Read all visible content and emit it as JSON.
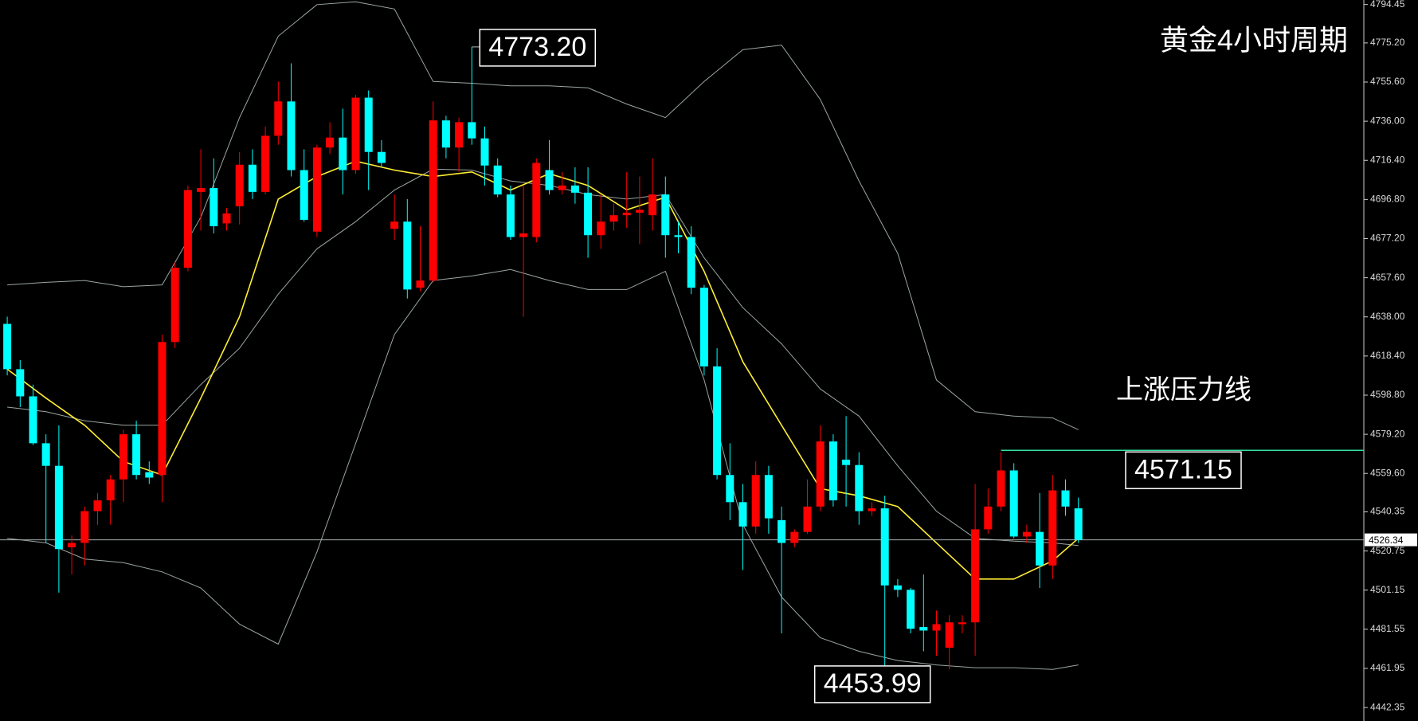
{
  "chart_data": {
    "type": "candlestick",
    "title": "黄金4小时周期",
    "up_color": "#ff0000",
    "down_color": "#00ffff",
    "ylim": [
      4435.6,
      4796.7
    ],
    "yticks": [
      4794.45,
      {
        "value": 4775.2,
        "label": "4775.20"
      },
      {
        "value": 4755.6,
        "label": "4755.60"
      },
      {
        "value": 4736,
        "label": "4736.00"
      },
      {
        "value": 4716.4,
        "label": "4716.40"
      },
      {
        "value": 4696.8,
        "label": "4696.80"
      },
      {
        "value": 4677.2,
        "label": "4677.20"
      },
      {
        "value": 4657.6,
        "label": "4657.60"
      },
      {
        "value": 4638,
        "label": "4638.00"
      },
      {
        "value": 4618.4,
        "label": "4618.40"
      },
      {
        "value": 4598.8,
        "label": "4598.80"
      },
      {
        "value": 4579.2,
        "label": "4579.20"
      },
      {
        "value": 4559.6,
        "label": "4559.60"
      },
      4540.35,
      4520.75,
      4501.15,
      4481.55,
      4461.95,
      4442.35
    ],
    "open": [
      4634.5,
      4611.8,
      4598.2,
      4574.7,
      4563.4,
      4522.6,
      4524.8,
      4540.7,
      4546.1,
      4556.6,
      4579.2,
      4560.2,
      4558.8,
      4625.4,
      4662.6,
      4700.6,
      4702.5,
      4684.8,
      4693.4,
      4714.2,
      4700.6,
      4728.7,
      4745.9,
      4711.5,
      4680.7,
      4722.8,
      4727.8,
      4711.5,
      4747.8,
      4720.6,
      4682.1,
      4685.7,
      4652.6,
      4656.2,
      4736.4,
      4722.8,
      4735.5,
      4727.4,
      4713.8,
      4699.3,
      4678.0,
      4678.0,
      4711.5,
      4701.5,
      4703.8,
      4700.2,
      4678.9,
      4685.7,
      4688.9,
      4690.2,
      4688.9,
      4699.3,
      4678.9,
      4678.0,
      4652.6,
      4613.2,
      4558.8,
      4545.2,
      4533.0,
      4558.8,
      4536.2,
      4524.8,
      4530.3,
      4543.0,
      4575.6,
      4566.5,
      4563.8,
      4540.7,
      4542.1,
      4503.5,
      4501.3,
      4482.7,
      4480.9,
      4472.3,
      4484.1,
      4485.0,
      4531.6,
      4543.0,
      4561.1,
      4528.0,
      4530.3,
      4513.5,
      4551.1,
      4542.1
    ],
    "high": [
      4638.1,
      4616.4,
      4604.1,
      4579.2,
      4583.7,
      4528.5,
      4543.0,
      4549.8,
      4558.8,
      4581.5,
      4586.0,
      4565.6,
      4629.1,
      4665.3,
      4703.8,
      4721.9,
      4717.4,
      4692.5,
      4720.6,
      4721.9,
      4733.3,
      4755.9,
      4765.0,
      4721.9,
      4724.2,
      4735.5,
      4742.3,
      4749.1,
      4751.4,
      4726.5,
      4699.3,
      4697.0,
      4683.4,
      4745.9,
      4738.7,
      4737.8,
      4773.2,
      4733.3,
      4717.4,
      4703.8,
      4703.8,
      4717.4,
      4726.5,
      4710.6,
      4712.9,
      4712.9,
      4699.3,
      4694.7,
      4710.6,
      4708.3,
      4717.4,
      4708.3,
      4685.7,
      4683.4,
      4654.0,
      4622.3,
      4574.7,
      4554.3,
      4565.6,
      4563.4,
      4543.0,
      4531.6,
      4556.6,
      4583.7,
      4579.2,
      4588.3,
      4570.2,
      4545.2,
      4548.4,
      4506.7,
      4502.2,
      4509.0,
      4490.9,
      4488.6,
      4488.6,
      4554.3,
      4552.0,
      4570.2,
      4564.7,
      4533.9,
      4549.8,
      4558.8,
      4556.6,
      4547.5
    ],
    "low": [
      4608.7,
      4592.8,
      4573.8,
      4524.8,
      4499.9,
      4509.0,
      4513.5,
      4533.9,
      4533.9,
      4545.2,
      4556.6,
      4554.3,
      4545.2,
      4622.3,
      4660.8,
      4681.2,
      4679.8,
      4681.2,
      4684.3,
      4697.0,
      4699.3,
      4724.2,
      4708.3,
      4685.7,
      4678.0,
      4719.7,
      4699.3,
      4709.7,
      4701.5,
      4712.9,
      4676.6,
      4647.2,
      4650.8,
      4655.3,
      4717.4,
      4710.6,
      4724.2,
      4703.8,
      4697.9,
      4676.6,
      4638.1,
      4675.3,
      4699.3,
      4699.3,
      4694.7,
      4667.6,
      4672.1,
      4681.2,
      4682.5,
      4674.4,
      4681.2,
      4667.6,
      4669.8,
      4649.4,
      4608.7,
      4556.6,
      4536.2,
      4511.2,
      4529.4,
      4529.4,
      4479.5,
      4522.6,
      4529.4,
      4540.7,
      4543.0,
      4543.0,
      4533.9,
      4538.4,
      4453.99,
      4497.7,
      4479.5,
      4470.5,
      4468.2,
      4461.4,
      4479.5,
      4468.2,
      4529.4,
      4540.7,
      4527.1,
      4524.8,
      4502.2,
      4506.7,
      4538.4,
      4524.8
    ],
    "close": [
      4611.8,
      4598.2,
      4574.7,
      4563.4,
      4521.7,
      4524.8,
      4540.7,
      4546.1,
      4556.6,
      4579.2,
      4558.8,
      4557.5,
      4625.4,
      4662.6,
      4701.5,
      4702.5,
      4683.4,
      4689.8,
      4714.2,
      4700.6,
      4728.7,
      4745.9,
      4711.5,
      4686.6,
      4722.8,
      4727.8,
      4711.5,
      4747.8,
      4720.6,
      4715.1,
      4685.7,
      4651.7,
      4656.2,
      4736.4,
      4722.8,
      4735.5,
      4727.4,
      4713.8,
      4699.3,
      4678.0,
      4679.8,
      4715.1,
      4701.5,
      4703.8,
      4700.2,
      4678.9,
      4685.7,
      4688.9,
      4690.2,
      4691.6,
      4699.3,
      4678.9,
      4678.0,
      4652.6,
      4613.2,
      4558.8,
      4545.2,
      4533.0,
      4558.8,
      4537.1,
      4524.8,
      4530.3,
      4543.0,
      4575.6,
      4546.1,
      4563.8,
      4540.7,
      4542.1,
      4503.5,
      4501.3,
      4481.8,
      4480.9,
      4484.1,
      4485.0,
      4485.0,
      4531.6,
      4543.0,
      4561.1,
      4528.0,
      4530.3,
      4513.5,
      4551.1,
      4543.0,
      4526.34
    ],
    "lines": [
      {
        "color": "#9aa6a0",
        "x": [
          0,
          3,
          6,
          9,
          12,
          15,
          18,
          21,
          24,
          27,
          30,
          33,
          36,
          39,
          42,
          45,
          48,
          51,
          54,
          57,
          60,
          63,
          66,
          69,
          72,
          75,
          78,
          81,
          83
        ],
        "values": [
          4654.0,
          4655.3,
          4656.2,
          4653.1,
          4654.0,
          4687.9,
          4737.8,
          4778.6,
          4794.4,
          4795.8,
          4792.2,
          4755.9,
          4755.0,
          4753.7,
          4753.7,
          4752.7,
          4744.6,
          4737.8,
          4755.9,
          4771.8,
          4774.1,
          4746.9,
          4706.1,
          4669.8,
          4606.4,
          4590.5,
          4588.3,
          4587.4,
          4581.5
        ]
      },
      {
        "color": "#9aa6a0",
        "x": [
          0,
          3,
          6,
          9,
          12,
          15,
          18,
          21,
          24,
          27,
          30,
          33,
          36,
          39,
          42,
          45,
          48,
          51,
          54,
          57,
          60,
          63,
          66,
          69,
          72,
          75,
          78,
          81,
          83
        ],
        "values": [
          4592.8,
          4590.5,
          4586.0,
          4583.7,
          4583.7,
          4604.1,
          4622.3,
          4649.4,
          4672.1,
          4685.7,
          4701.5,
          4712.0,
          4711.5,
          4706.1,
          4703.8,
          4699.3,
          4697.0,
          4699.3,
          4667.6,
          4642.6,
          4624.5,
          4601.9,
          4588.3,
          4563.4,
          4540.7,
          4527.1,
          4525.7,
          4524.8,
          4523.5
        ]
      },
      {
        "color": "#9aa6a0",
        "x": [
          0,
          3,
          6,
          9,
          12,
          15,
          18,
          21,
          24,
          27,
          30,
          33,
          36,
          39,
          42,
          45,
          48,
          51,
          54,
          57,
          60,
          63,
          66,
          69,
          72,
          75,
          78,
          81,
          83
        ],
        "values": [
          4527.1,
          4524.8,
          4516.7,
          4514.9,
          4510.3,
          4502.2,
          4484.1,
          4474.1,
          4520.3,
          4574.7,
          4629.1,
          4656.2,
          4658.5,
          4661.7,
          4656.2,
          4651.7,
          4651.7,
          4660.8,
          4606.4,
          4533.9,
          4497.7,
          4477.3,
          4470.5,
          4465.9,
          4463.7,
          4462.3,
          4462.3,
          4461.4,
          4463.7
        ]
      },
      {
        "color": "#ffee33",
        "x": [
          0,
          3,
          6,
          9,
          12,
          15,
          18,
          21,
          24,
          27,
          30,
          33,
          36,
          39,
          42,
          45,
          48,
          51,
          54,
          57,
          60,
          63,
          66,
          69,
          72,
          75,
          78,
          81,
          83
        ],
        "values": [
          4611.8,
          4597.3,
          4583.7,
          4565.6,
          4558.8,
          4597.3,
          4638.1,
          4697.0,
          4708.3,
          4716.0,
          4711.5,
          4708.3,
          4710.6,
          4701.5,
          4709.7,
          4703.8,
          4691.6,
          4697.9,
          4660.8,
          4615.5,
          4583.7,
          4552.0,
          4548.4,
          4543.0,
          4524.8,
          4506.7,
          4506.7,
          4515.8,
          4527.1
        ]
      }
    ],
    "annotations": [
      {
        "value": 4773.2,
        "label": "4773.20",
        "index": 36
      },
      {
        "value": 4453.99,
        "index": 68
      }
    ],
    "resistance": {
      "label": "上涨压力线",
      "value": 4571.15,
      "index": 77,
      "color": "#33e0a0"
    },
    "last_price": 4526.34
  }
}
